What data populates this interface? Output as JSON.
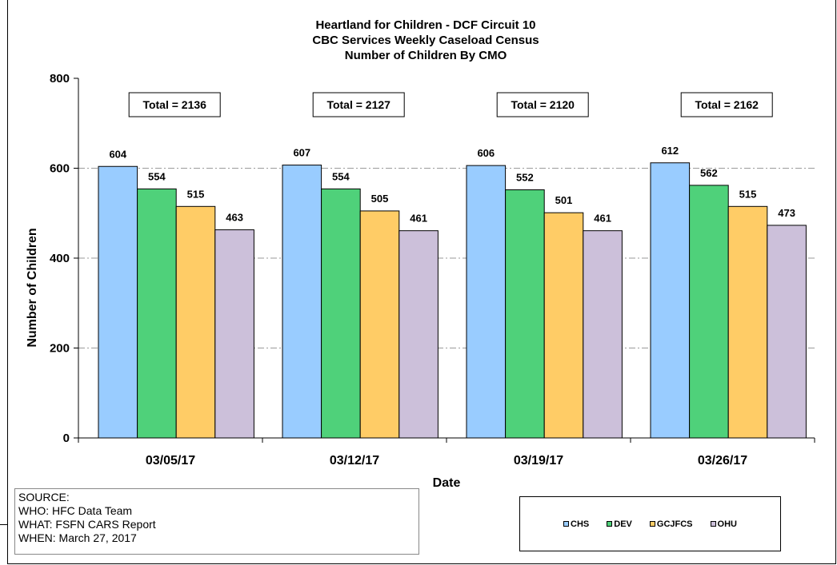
{
  "chart_data": {
    "type": "bar",
    "title": "Heartland for Children - DCF Circuit 10",
    "subtitle": [
      "CBC Services Weekly Caseload Census",
      "Number of Children By CMO"
    ],
    "xlabel": "Date",
    "ylabel": "Number of Children",
    "ylim": [
      0,
      800
    ],
    "yticks": [
      0,
      200,
      400,
      600,
      800
    ],
    "grid": true,
    "legend_position": "bottom-right",
    "categories": [
      "03/05/17",
      "03/12/17",
      "03/19/17",
      "03/26/17"
    ],
    "series": [
      {
        "name": "CHS",
        "color": "#99CCFF",
        "values": [
          604,
          607,
          606,
          612
        ]
      },
      {
        "name": "DEV",
        "color": "#4FD17A",
        "values": [
          554,
          554,
          552,
          562
        ]
      },
      {
        "name": "GCJFCS",
        "color": "#FFCC66",
        "values": [
          515,
          505,
          501,
          515
        ]
      },
      {
        "name": "OHU",
        "color": "#CCC0DA",
        "values": [
          463,
          461,
          461,
          473
        ]
      }
    ],
    "annotations": [
      "Total = 2136",
      "Total = 2127",
      "Total = 2120",
      "Total = 2162"
    ]
  },
  "source": {
    "lines": [
      "SOURCE:",
      "WHO:  HFC Data Team",
      "WHAT: FSFN CARS Report",
      "WHEN: March 27, 2017"
    ]
  }
}
